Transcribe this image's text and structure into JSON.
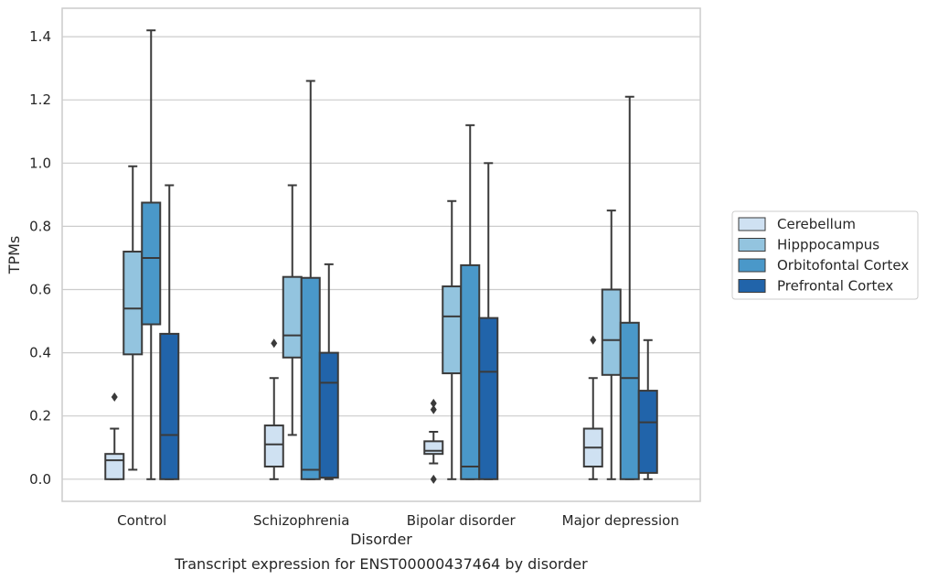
{
  "chart_data": {
    "type": "box",
    "title": "Transcript expression for ENST00000437464 by disorder",
    "xlabel": "Disorder",
    "ylabel": "TPMs",
    "ylim": [
      -0.07,
      1.49
    ],
    "yticks": [
      "0.0",
      "0.2",
      "0.4",
      "0.6",
      "0.8",
      "1.0",
      "1.2",
      "1.4"
    ],
    "grid": true,
    "legend_position": "right",
    "categories": [
      "Control",
      "Schizophrenia",
      "Bipolar disorder",
      "Major depression"
    ],
    "series": [
      {
        "name": "Cerebellum",
        "color": "#cfe1f2",
        "boxes": [
          {
            "whislo": 0.0,
            "q1": 0.0,
            "med": 0.06,
            "q3": 0.08,
            "whishi": 0.16,
            "fliers": [
              0.26
            ]
          },
          {
            "whislo": 0.0,
            "q1": 0.04,
            "med": 0.11,
            "q3": 0.17,
            "whishi": 0.32,
            "fliers": [
              0.43
            ]
          },
          {
            "whislo": 0.05,
            "q1": 0.08,
            "med": 0.09,
            "q3": 0.12,
            "whishi": 0.15,
            "fliers": [
              0.0,
              0.22,
              0.24
            ]
          },
          {
            "whislo": 0.0,
            "q1": 0.04,
            "med": 0.1,
            "q3": 0.16,
            "whishi": 0.32,
            "fliers": [
              0.44
            ]
          }
        ]
      },
      {
        "name": "Hipppocampus",
        "color": "#93c4df",
        "boxes": [
          {
            "whislo": 0.03,
            "q1": 0.395,
            "med": 0.54,
            "q3": 0.72,
            "whishi": 0.99,
            "fliers": []
          },
          {
            "whislo": 0.14,
            "q1": 0.385,
            "med": 0.455,
            "q3": 0.64,
            "whishi": 0.93,
            "fliers": []
          },
          {
            "whislo": 0.0,
            "q1": 0.335,
            "med": 0.515,
            "q3": 0.61,
            "whishi": 0.88,
            "fliers": []
          },
          {
            "whislo": 0.0,
            "q1": 0.33,
            "med": 0.44,
            "q3": 0.6,
            "whishi": 0.85,
            "fliers": []
          }
        ]
      },
      {
        "name": "Orbitofontal Cortex",
        "color": "#4a98c9",
        "boxes": [
          {
            "whislo": 0.0,
            "q1": 0.49,
            "med": 0.7,
            "q3": 0.875,
            "whishi": 1.42,
            "fliers": []
          },
          {
            "whislo": 0.0,
            "q1": 0.0,
            "med": 0.03,
            "q3": 0.637,
            "whishi": 1.26,
            "fliers": []
          },
          {
            "whislo": 0.0,
            "q1": 0.0,
            "med": 0.04,
            "q3": 0.677,
            "whishi": 1.12,
            "fliers": []
          },
          {
            "whislo": 0.0,
            "q1": 0.0,
            "med": 0.32,
            "q3": 0.495,
            "whishi": 1.21,
            "fliers": []
          }
        ]
      },
      {
        "name": "Prefrontal Cortex",
        "color": "#2164aa",
        "boxes": [
          {
            "whislo": 0.0,
            "q1": 0.0,
            "med": 0.14,
            "q3": 0.46,
            "whishi": 0.93,
            "fliers": []
          },
          {
            "whislo": 0.0,
            "q1": 0.005,
            "med": 0.305,
            "q3": 0.4,
            "whishi": 0.68,
            "fliers": []
          },
          {
            "whislo": 0.0,
            "q1": 0.0,
            "med": 0.34,
            "q3": 0.51,
            "whishi": 1.0,
            "fliers": []
          },
          {
            "whislo": 0.0,
            "q1": 0.02,
            "med": 0.18,
            "q3": 0.28,
            "whishi": 0.44,
            "fliers": []
          }
        ]
      }
    ],
    "colors": {
      "grid": "#cccccc",
      "spine": "#cccccc",
      "line": "#3a3a3a",
      "background": "#ffffff"
    }
  }
}
